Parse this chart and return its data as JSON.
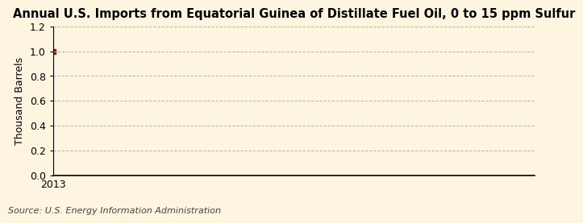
{
  "title": "Annual U.S. Imports from Equatorial Guinea of Distillate Fuel Oil, 0 to 15 ppm Sulfur",
  "ylabel": "Thousand Barrels",
  "source": "Source: U.S. Energy Information Administration",
  "x_data": [
    2013
  ],
  "y_data": [
    1.0
  ],
  "xlim": [
    2013,
    2014.5
  ],
  "ylim": [
    0.0,
    1.2
  ],
  "yticks": [
    0.0,
    0.2,
    0.4,
    0.6,
    0.8,
    1.0,
    1.2
  ],
  "xticks": [
    2013
  ],
  "point_color": "#cc0000",
  "background_color": "#fdf5e0",
  "grid_color": "#aaaaaa",
  "vline_color": "#aaaaaa",
  "title_fontsize": 10.5,
  "label_fontsize": 9,
  "tick_fontsize": 9,
  "source_fontsize": 8
}
